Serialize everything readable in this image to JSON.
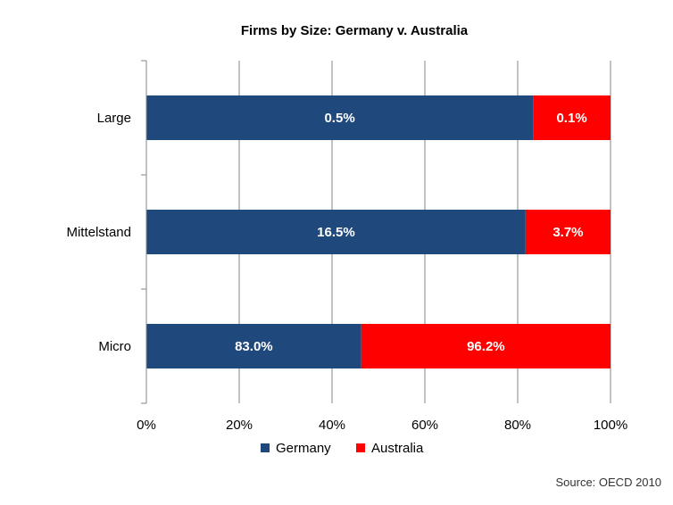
{
  "chart_data": {
    "type": "bar",
    "orientation": "horizontal",
    "stacked": "percent",
    "title": "Firms by Size: Germany  v. Australia",
    "categories": [
      "Large",
      "Mittelstand",
      "Micro"
    ],
    "series": [
      {
        "name": "Germany",
        "values": [
          0.5,
          16.5,
          83.0
        ],
        "labels": [
          "0.5%",
          "16.5%",
          "83.0%"
        ],
        "color": "#1F497D"
      },
      {
        "name": "Australia",
        "values": [
          0.1,
          3.7,
          96.2
        ],
        "labels": [
          "0.1%",
          "3.7%",
          "96.2%"
        ],
        "color": "#FF0000"
      }
    ],
    "shares": {
      "Germany": [
        83.3,
        81.7,
        46.3
      ],
      "Australia": [
        16.7,
        18.3,
        53.7
      ]
    },
    "xlim": [
      0,
      100
    ],
    "xticks": [
      "0%",
      "20%",
      "40%",
      "60%",
      "80%",
      "100%"
    ],
    "grid": true,
    "legend": "bottom",
    "source": "Source: OECD 2010"
  }
}
